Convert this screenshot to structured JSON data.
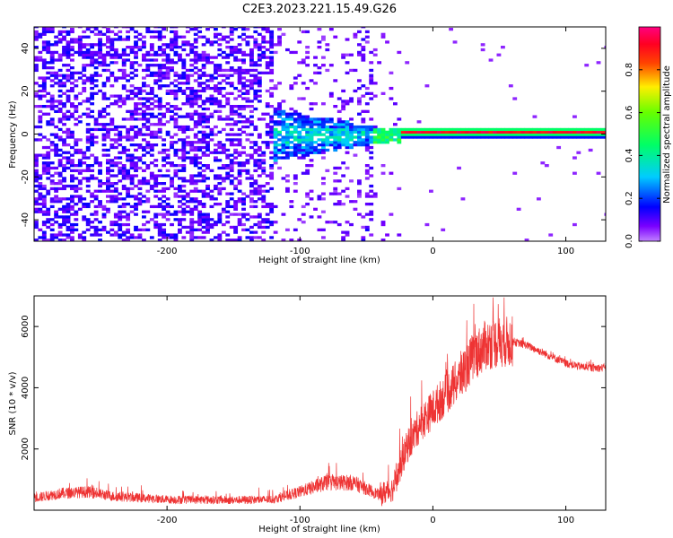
{
  "figure_title": "C2E3.2023.221.15.49.G26",
  "chart_data": [
    {
      "type": "heatmap",
      "title": "",
      "xlabel": "Height of straight line (km)",
      "ylabel": "Frequency (Hz)",
      "xlim": [
        -300,
        130
      ],
      "ylim": [
        -50,
        50
      ],
      "xticks": [
        -200,
        -100,
        0,
        100
      ],
      "yticks": [
        -40,
        -20,
        0,
        20,
        40
      ],
      "colorbar": {
        "label": "Normalized spectral amplitude",
        "range": [
          0,
          1
        ],
        "ticks": [
          0.0,
          0.2,
          0.4,
          0.6,
          0.8
        ],
        "tick_labels": [
          "0.0",
          "0.2",
          "0.4",
          "0.6",
          "0.8"
        ],
        "colormap": "hsv-rainbow (violet → blue → cyan → green → yellow → red → magenta)"
      },
      "features": [
        {
          "region_km": [
            -300,
            -120
          ],
          "freq_hz": [
            -50,
            50
          ],
          "amplitude": 0.1,
          "desc": "broadband noise"
        },
        {
          "region_km": [
            -120,
            -40
          ],
          "freq_hz": [
            -10,
            8
          ],
          "amplitude": 0.3,
          "desc": "converging signal"
        },
        {
          "region_km": [
            -45,
            -25
          ],
          "freq_hz": [
            -5,
            3
          ],
          "amplitude": 0.45,
          "desc": "green transition band"
        },
        {
          "region_km": [
            -25,
            130
          ],
          "freq_hz": [
            -1,
            1
          ],
          "amplitude": 0.9,
          "desc": "narrow strong carrier line"
        }
      ]
    },
    {
      "type": "line",
      "title": "",
      "xlabel": "Height of straight line (km)",
      "ylabel": "SNR (10 * v/v)",
      "xlim": [
        -300,
        130
      ],
      "ylim": [
        0,
        7000
      ],
      "xticks": [
        -200,
        -100,
        0,
        100
      ],
      "yticks": [
        2000,
        4000,
        6000
      ],
      "color": "#ee3333",
      "envelope": {
        "x": [
          -300,
          -280,
          -260,
          -240,
          -200,
          -150,
          -120,
          -100,
          -80,
          -60,
          -40,
          -30,
          -20,
          -10,
          0,
          10,
          20,
          30,
          40,
          50,
          60,
          70,
          80,
          90,
          100,
          110,
          120,
          130
        ],
        "y": [
          400,
          550,
          600,
          450,
          350,
          330,
          350,
          600,
          900,
          900,
          500,
          700,
          2000,
          2800,
          3300,
          3800,
          4300,
          5000,
          5400,
          5500,
          5500,
          5400,
          5200,
          5000,
          4800,
          4700,
          4650,
          4650
        ]
      }
    }
  ]
}
